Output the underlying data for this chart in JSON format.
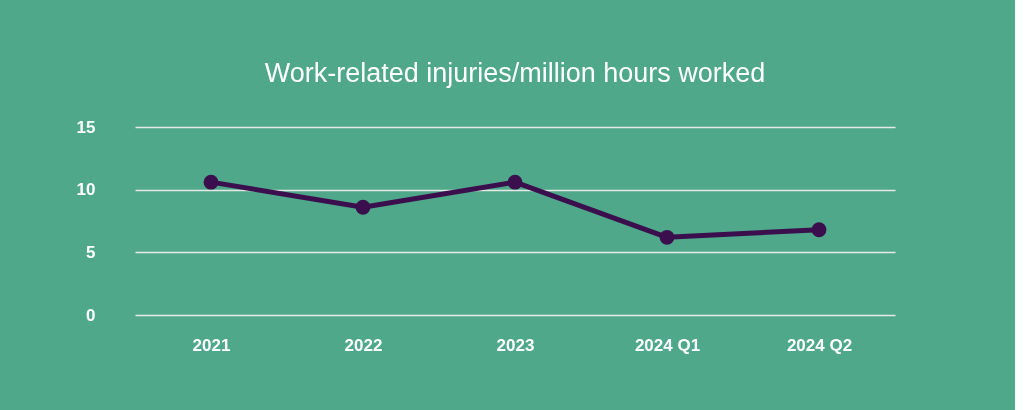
{
  "chart_data": {
    "type": "line",
    "title": "Work-related injuries/million hours worked",
    "categories": [
      "2021",
      "2022",
      "2023",
      "2024 Q1",
      "2024 Q2"
    ],
    "series": [
      {
        "color": "#3b0f4e",
        "values": [
          10.6,
          8.6,
          10.6,
          6.2,
          6.8
        ]
      }
    ],
    "ylim": [
      0,
      15
    ],
    "yticks": [
      0,
      5,
      10,
      15
    ],
    "grid": "y",
    "marker": "circle",
    "line_style": "solid"
  }
}
